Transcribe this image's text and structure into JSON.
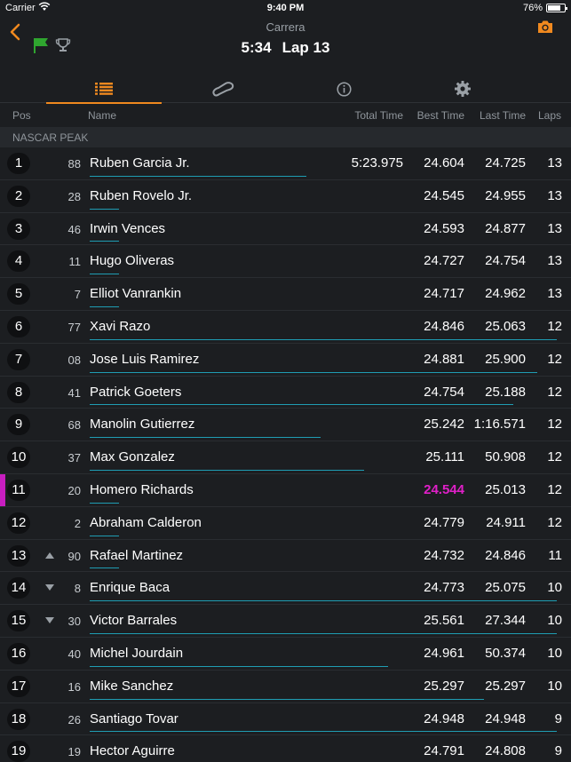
{
  "status": {
    "carrier": "Carrier",
    "time": "9:40 PM",
    "battery": "76%"
  },
  "header": {
    "title": "Carrera",
    "elapsed": "5:34",
    "lap": "Lap 13"
  },
  "tabs": [
    {
      "icon": "list-icon",
      "active": true
    },
    {
      "icon": "track-icon",
      "active": false
    },
    {
      "icon": "info-icon",
      "active": false
    },
    {
      "icon": "gear-icon",
      "active": false
    }
  ],
  "columns": {
    "pos": "Pos",
    "name": "Name",
    "total": "Total Time",
    "best": "Best Time",
    "last": "Last Time",
    "laps": "Laps"
  },
  "section": "NASCAR PEAK",
  "colors": {
    "accent": "#f0891f",
    "progress": "#1f9db3",
    "highlight": "#e020c8",
    "flag": "#2fa52f"
  },
  "rows": [
    {
      "pos": "1",
      "num": "88",
      "name": "Ruben Garcia Jr.",
      "total": "5:23.975",
      "best": "24.604",
      "last": "24.725",
      "laps": "13",
      "progress": 0.45,
      "trend": "",
      "best_hl": false,
      "marked": false
    },
    {
      "pos": "2",
      "num": "28",
      "name": "Ruben Rovelo Jr.",
      "total": "",
      "best": "24.545",
      "last": "24.955",
      "laps": "13",
      "progress": 0.06,
      "trend": "",
      "best_hl": false,
      "marked": false
    },
    {
      "pos": "3",
      "num": "46",
      "name": "Irwin Vences",
      "total": "",
      "best": "24.593",
      "last": "24.877",
      "laps": "13",
      "progress": 0.06,
      "trend": "",
      "best_hl": false,
      "marked": false
    },
    {
      "pos": "4",
      "num": "11",
      "name": "Hugo Oliveras",
      "total": "",
      "best": "24.727",
      "last": "24.754",
      "laps": "13",
      "progress": 0.06,
      "trend": "",
      "best_hl": false,
      "marked": false
    },
    {
      "pos": "5",
      "num": "7",
      "name": "Elliot Vanrankin",
      "total": "",
      "best": "24.717",
      "last": "24.962",
      "laps": "13",
      "progress": 0.06,
      "trend": "",
      "best_hl": false,
      "marked": false
    },
    {
      "pos": "6",
      "num": "77",
      "name": "Xavi Razo",
      "total": "",
      "best": "24.846",
      "last": "25.063",
      "laps": "12",
      "progress": 0.97,
      "trend": "",
      "best_hl": false,
      "marked": false
    },
    {
      "pos": "7",
      "num": "08",
      "name": "Jose Luis Ramirez",
      "total": "",
      "best": "24.881",
      "last": "25.900",
      "laps": "12",
      "progress": 0.93,
      "trend": "",
      "best_hl": false,
      "marked": false
    },
    {
      "pos": "8",
      "num": "41",
      "name": "Patrick Goeters",
      "total": "",
      "best": "24.754",
      "last": "25.188",
      "laps": "12",
      "progress": 0.88,
      "trend": "",
      "best_hl": false,
      "marked": false
    },
    {
      "pos": "9",
      "num": "68",
      "name": "Manolin Gutierrez",
      "total": "",
      "best": "25.242",
      "last": "1:16.571",
      "laps": "12",
      "progress": 0.48,
      "trend": "",
      "best_hl": false,
      "marked": false
    },
    {
      "pos": "10",
      "num": "37",
      "name": "Max Gonzalez",
      "total": "",
      "best": "25.111",
      "last": "50.908",
      "laps": "12",
      "progress": 0.57,
      "trend": "",
      "best_hl": false,
      "marked": false
    },
    {
      "pos": "11",
      "num": "20",
      "name": "Homero Richards",
      "total": "",
      "best": "24.544",
      "last": "25.013",
      "laps": "12",
      "progress": 0.06,
      "trend": "",
      "best_hl": true,
      "marked": true
    },
    {
      "pos": "12",
      "num": "2",
      "name": "Abraham Calderon",
      "total": "",
      "best": "24.779",
      "last": "24.911",
      "laps": "12",
      "progress": 0.06,
      "trend": "",
      "best_hl": false,
      "marked": false
    },
    {
      "pos": "13",
      "num": "90",
      "name": "Rafael Martinez",
      "total": "",
      "best": "24.732",
      "last": "24.846",
      "laps": "11",
      "progress": 0.06,
      "trend": "up",
      "best_hl": false,
      "marked": false
    },
    {
      "pos": "14",
      "num": "8",
      "name": "Enrique  Baca",
      "total": "",
      "best": "24.773",
      "last": "25.075",
      "laps": "10",
      "progress": 0.97,
      "trend": "down",
      "best_hl": false,
      "marked": false
    },
    {
      "pos": "15",
      "num": "30",
      "name": "Victor Barrales",
      "total": "",
      "best": "25.561",
      "last": "27.344",
      "laps": "10",
      "progress": 0.97,
      "trend": "down",
      "best_hl": false,
      "marked": false
    },
    {
      "pos": "16",
      "num": "40",
      "name": "Michel Jourdain",
      "total": "",
      "best": "24.961",
      "last": "50.374",
      "laps": "10",
      "progress": 0.62,
      "trend": "",
      "best_hl": false,
      "marked": false
    },
    {
      "pos": "17",
      "num": "16",
      "name": "Mike Sanchez",
      "total": "",
      "best": "25.297",
      "last": "25.297",
      "laps": "10",
      "progress": 0.82,
      "trend": "",
      "best_hl": false,
      "marked": false
    },
    {
      "pos": "18",
      "num": "26",
      "name": "Santiago Tovar",
      "total": "",
      "best": "24.948",
      "last": "24.948",
      "laps": "9",
      "progress": 0.97,
      "trend": "",
      "best_hl": false,
      "marked": false
    },
    {
      "pos": "19",
      "num": "19",
      "name": "Hector Aguirre",
      "total": "",
      "best": "24.791",
      "last": "24.808",
      "laps": "9",
      "progress": 0.0,
      "trend": "",
      "best_hl": false,
      "marked": false
    }
  ]
}
